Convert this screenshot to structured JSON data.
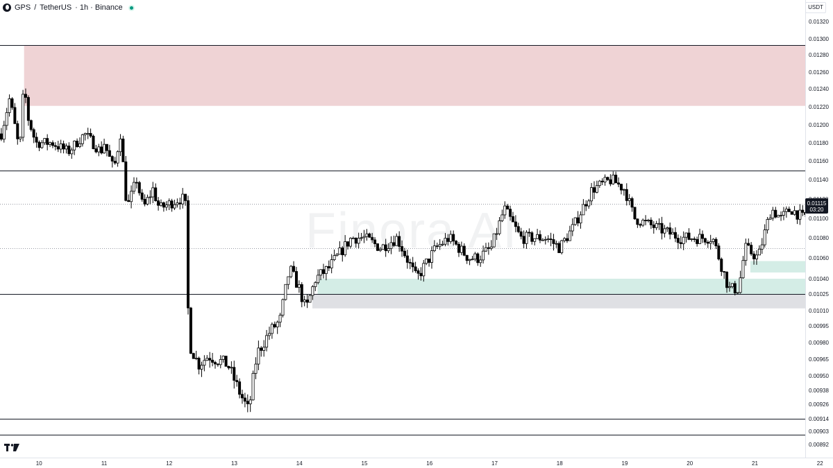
{
  "header": {
    "symbol": "GPS",
    "separator": "/",
    "quote": "TetherUS",
    "details": "· 1h · Binance"
  },
  "currency_button": "USDT",
  "watermark": "Finora AI",
  "price_label": {
    "price": "0.01115",
    "countdown": "03:20"
  },
  "colors": {
    "supply_zone": "#efd3d5",
    "demand_zone": "#d4ede6",
    "grey_zone": "#dfe0e4",
    "candle": "#000000",
    "level_line": "#131722",
    "price_tag_bg": "#131722"
  },
  "chart_data": {
    "type": "candlestick",
    "exchange": "Binance",
    "interval": "1h",
    "y_ticks": [
      {
        "label": "0.01320",
        "value": 0.0132
      },
      {
        "label": "0.01300",
        "value": 0.013
      },
      {
        "label": "0.01280",
        "value": 0.0128
      },
      {
        "label": "0.01260",
        "value": 0.0126
      },
      {
        "label": "0.01240",
        "value": 0.0124
      },
      {
        "label": "0.01220",
        "value": 0.0122
      },
      {
        "label": "0.01200",
        "value": 0.012
      },
      {
        "label": "0.01180",
        "value": 0.0118
      },
      {
        "label": "0.01160",
        "value": 0.0116
      },
      {
        "label": "0.01140",
        "value": 0.0114
      },
      {
        "label": "0.01120",
        "value": 0.0112
      },
      {
        "label": "0.01100",
        "value": 0.011
      },
      {
        "label": "0.01080",
        "value": 0.0108
      },
      {
        "label": "0.01060",
        "value": 0.0106
      },
      {
        "label": "0.01040",
        "value": 0.0104
      },
      {
        "label": "0.01025",
        "value": 0.01025
      },
      {
        "label": "0.01010",
        "value": 0.0101
      },
      {
        "label": "0.00995",
        "value": 0.00995
      },
      {
        "label": "0.00980",
        "value": 0.0098
      },
      {
        "label": "0.00965",
        "value": 0.00965
      },
      {
        "label": "0.00950",
        "value": 0.0095
      },
      {
        "label": "0.00938",
        "value": 0.00938
      },
      {
        "label": "0.00926",
        "value": 0.00926
      },
      {
        "label": "0.00914",
        "value": 0.00914
      },
      {
        "label": "0.00903",
        "value": 0.00903
      },
      {
        "label": "0.00892",
        "value": 0.00892
      }
    ],
    "x_ticks": [
      {
        "label": "10",
        "time": 10
      },
      {
        "label": "11",
        "time": 11
      },
      {
        "label": "12",
        "time": 12
      },
      {
        "label": "13",
        "time": 13
      },
      {
        "label": "14",
        "time": 14
      },
      {
        "label": "15",
        "time": 15
      },
      {
        "label": "16",
        "time": 16
      },
      {
        "label": "17",
        "time": 17
      },
      {
        "label": "18",
        "time": 18
      },
      {
        "label": "19",
        "time": 19
      },
      {
        "label": "20",
        "time": 20
      },
      {
        "label": "21",
        "time": 21
      },
      {
        "label": "22",
        "time": 22
      }
    ],
    "x_range": [
      9.4,
      22.2
    ],
    "horizontal_levels": [
      {
        "price": 0.01292,
        "style": "solid"
      },
      {
        "price": 0.0115,
        "style": "solid"
      },
      {
        "price": 0.01115,
        "style": "dotted"
      },
      {
        "price": 0.0107,
        "style": "dotted"
      },
      {
        "price": 0.01025,
        "style": "solid"
      },
      {
        "price": 0.00914,
        "style": "solid"
      },
      {
        "price": 0.009,
        "style": "solid"
      }
    ],
    "zones": [
      {
        "kind": "supply",
        "start": 9.77,
        "end": 22.2,
        "top": 0.01292,
        "bottom": 0.01221
      },
      {
        "kind": "demand",
        "start": 14.28,
        "end": 22.2,
        "top": 0.0104,
        "bottom": 0.01025
      },
      {
        "kind": "grey",
        "start": 14.2,
        "end": 22.2,
        "top": 0.01025,
        "bottom": 0.01012
      },
      {
        "kind": "demand",
        "start": 20.93,
        "end": 22.2,
        "top": 0.01057,
        "bottom": 0.01046
      }
    ],
    "anchors": [
      [
        9.42,
        0.0119
      ],
      [
        9.55,
        0.0123
      ],
      [
        9.7,
        0.0117
      ],
      [
        9.77,
        0.01248
      ],
      [
        9.82,
        0.0121
      ],
      [
        9.95,
        0.0118
      ],
      [
        10.2,
        0.0118
      ],
      [
        10.45,
        0.0117
      ],
      [
        10.7,
        0.0119
      ],
      [
        10.95,
        0.0117
      ],
      [
        11.0,
        0.0118
      ],
      [
        11.15,
        0.0115
      ],
      [
        11.25,
        0.0119
      ],
      [
        11.35,
        0.0111
      ],
      [
        11.5,
        0.0114
      ],
      [
        11.6,
        0.0111
      ],
      [
        11.75,
        0.0113
      ],
      [
        11.85,
        0.0111
      ],
      [
        12.15,
        0.0112
      ],
      [
        12.22,
        0.0112
      ],
      [
        12.26,
        0.0111
      ],
      [
        12.3,
        0.0098
      ],
      [
        12.45,
        0.0096
      ],
      [
        12.6,
        0.00968
      ],
      [
        12.9,
        0.0096
      ],
      [
        13.05,
        0.0094
      ],
      [
        13.22,
        0.0092
      ],
      [
        13.35,
        0.0097
      ],
      [
        13.55,
        0.0099
      ],
      [
        13.7,
        0.01
      ],
      [
        13.85,
        0.0105
      ],
      [
        14.0,
        0.0103
      ],
      [
        14.1,
        0.0101
      ],
      [
        14.25,
        0.0104
      ],
      [
        14.45,
        0.0105
      ],
      [
        14.8,
        0.0108
      ],
      [
        15.0,
        0.0108
      ],
      [
        15.25,
        0.0107
      ],
      [
        15.5,
        0.0108
      ],
      [
        15.8,
        0.0104
      ],
      [
        16.1,
        0.0107
      ],
      [
        16.3,
        0.0108
      ],
      [
        16.6,
        0.0106
      ],
      [
        16.75,
        0.0106
      ],
      [
        16.95,
        0.0107
      ],
      [
        17.15,
        0.0111
      ],
      [
        17.4,
        0.0108
      ],
      [
        17.8,
        0.0108
      ],
      [
        18.0,
        0.0107
      ],
      [
        18.2,
        0.0109
      ],
      [
        18.5,
        0.0113
      ],
      [
        18.8,
        0.0114
      ],
      [
        19.0,
        0.0113
      ],
      [
        19.15,
        0.011
      ],
      [
        19.5,
        0.0109
      ],
      [
        19.85,
        0.0108
      ],
      [
        20.1,
        0.0108
      ],
      [
        20.35,
        0.0108
      ],
      [
        20.45,
        0.0106
      ],
      [
        20.6,
        0.0103
      ],
      [
        20.75,
        0.0103
      ],
      [
        20.85,
        0.0107
      ],
      [
        21.05,
        0.0106
      ],
      [
        21.25,
        0.0111
      ],
      [
        21.4,
        0.011
      ],
      [
        21.55,
        0.0111
      ],
      [
        21.75,
        0.011
      ],
      [
        21.9,
        0.01115
      ]
    ],
    "candle_spacing": 0.0416,
    "seed": 7
  }
}
